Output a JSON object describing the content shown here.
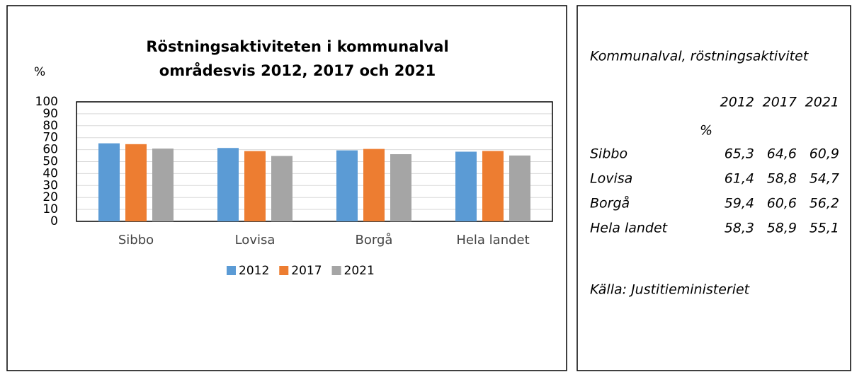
{
  "chart_data": {
    "type": "bar",
    "title": [
      "Röstningsaktiviteten i kommunalval",
      "områdesvis 2012, 2017 och 2021"
    ],
    "y_label": "%",
    "categories": [
      "Sibbo",
      "Lovisa",
      "Borgå",
      "Hela landet"
    ],
    "series": [
      {
        "name": "2012",
        "color": "#5b9bd5",
        "values": [
          65.3,
          61.4,
          59.4,
          58.3
        ]
      },
      {
        "name": "2017",
        "color": "#ed7d31",
        "values": [
          64.6,
          58.8,
          60.6,
          58.9
        ]
      },
      {
        "name": "2021",
        "color": "#a5a5a5",
        "values": [
          60.9,
          54.7,
          56.2,
          55.1
        ]
      }
    ],
    "ylim": [
      0,
      100
    ],
    "yticks": [
      0,
      10,
      20,
      30,
      40,
      50,
      60,
      70,
      80,
      90,
      100
    ],
    "grid": true,
    "legend": "bottom"
  },
  "table": {
    "title": "Kommunalval, röstningsaktivitet",
    "columns": [
      "2012",
      "2017",
      "2021"
    ],
    "unit": "%",
    "rows": [
      {
        "label": "Sibbo",
        "values": [
          "65,3",
          "64,6",
          "60,9"
        ]
      },
      {
        "label": "Lovisa",
        "values": [
          "61,4",
          "58,8",
          "54,7"
        ]
      },
      {
        "label": "Borgå",
        "values": [
          "59,4",
          "60,6",
          "56,2"
        ]
      },
      {
        "label": "Hela landet",
        "values": [
          "58,3",
          "58,9",
          "55,1"
        ]
      }
    ],
    "source": "Källa: Justitieministeriet"
  }
}
